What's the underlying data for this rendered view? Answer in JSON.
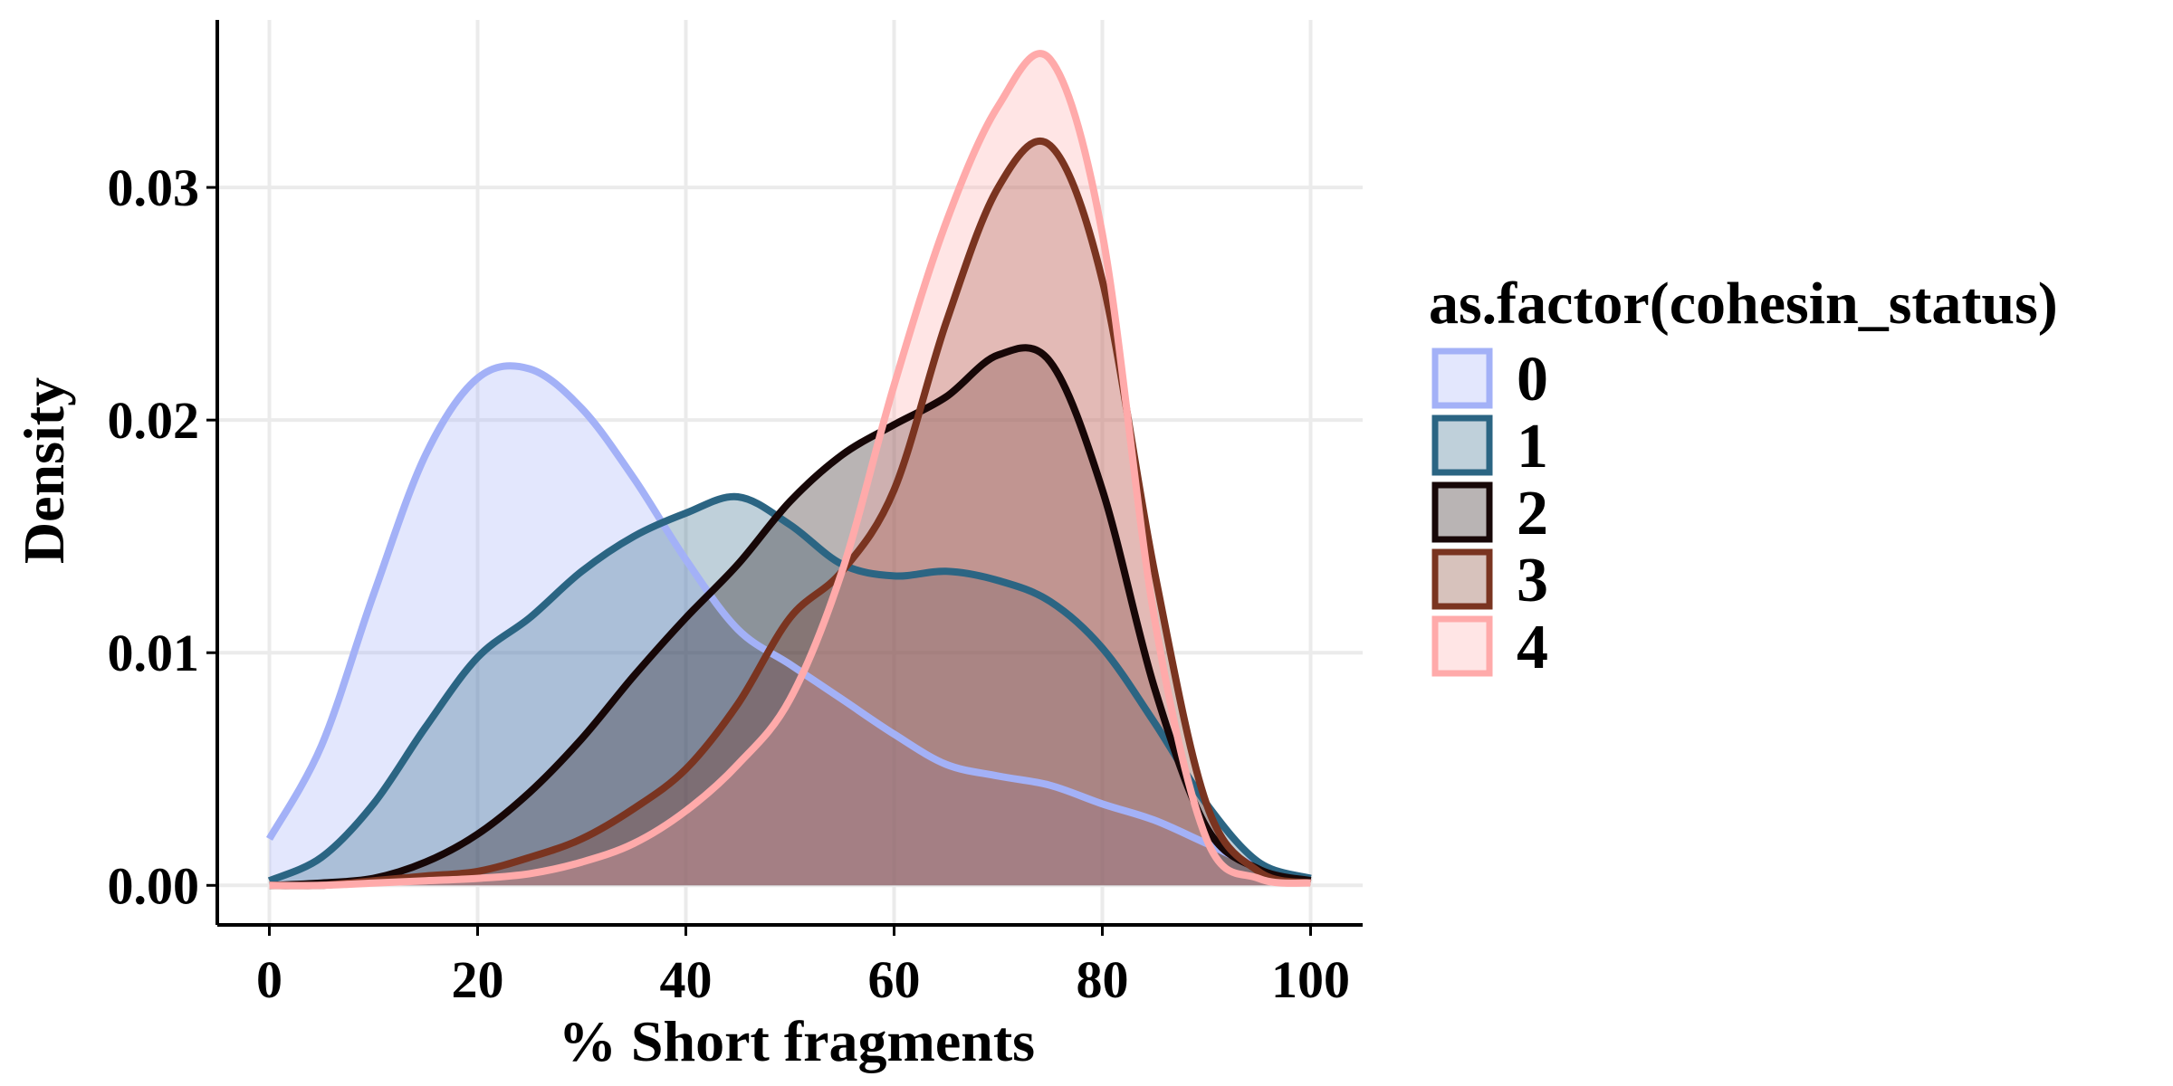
{
  "chart_data": {
    "type": "area",
    "subtype": "density",
    "title": "",
    "xlabel": "% Short fragments",
    "ylabel": "Density",
    "xlim": [
      -5,
      105
    ],
    "ylim": [
      -0.0017,
      0.0372
    ],
    "x_ticks": [
      {
        "value": 0,
        "label": "0"
      },
      {
        "value": 20,
        "label": "20"
      },
      {
        "value": 40,
        "label": "40"
      },
      {
        "value": 60,
        "label": "60"
      },
      {
        "value": 80,
        "label": "80"
      },
      {
        "value": 100,
        "label": "100"
      }
    ],
    "y_ticks": [
      {
        "value": 0.0,
        "label": "0.00"
      },
      {
        "value": 0.01,
        "label": "0.01"
      },
      {
        "value": 0.02,
        "label": "0.02"
      },
      {
        "value": 0.03,
        "label": "0.03"
      }
    ],
    "grid": true,
    "legend": {
      "title": "as.factor(cohesin_status)",
      "position": "right"
    },
    "fill_opacity": 0.3,
    "x": [
      0,
      5,
      10,
      15,
      20,
      25,
      30,
      35,
      40,
      45,
      50,
      55,
      60,
      65,
      70,
      75,
      80,
      85,
      90,
      95,
      100
    ],
    "series": [
      {
        "name": "0",
        "color": "#a3b1f7",
        "values": [
          0.002,
          0.006,
          0.0125,
          0.0185,
          0.0218,
          0.0222,
          0.0205,
          0.0175,
          0.014,
          0.011,
          0.0095,
          0.008,
          0.0065,
          0.0052,
          0.0047,
          0.0043,
          0.0035,
          0.0028,
          0.0018,
          0.0008,
          0.0003
        ]
      },
      {
        "name": "1",
        "color": "#2b6583",
        "values": [
          0.0002,
          0.0012,
          0.0035,
          0.0068,
          0.0098,
          0.0115,
          0.0135,
          0.015,
          0.016,
          0.0167,
          0.0155,
          0.0138,
          0.0133,
          0.0135,
          0.0131,
          0.0122,
          0.0102,
          0.007,
          0.0035,
          0.001,
          0.0003
        ]
      },
      {
        "name": "2",
        "color": "#170707",
        "values": [
          0.0,
          0.0001,
          0.0003,
          0.001,
          0.0022,
          0.004,
          0.0063,
          0.009,
          0.0115,
          0.0138,
          0.0165,
          0.0185,
          0.0198,
          0.021,
          0.0228,
          0.0225,
          0.017,
          0.0085,
          0.0025,
          0.0007,
          0.0002
        ]
      },
      {
        "name": "3",
        "color": "#7a3420",
        "values": [
          0.0,
          0.0,
          0.0002,
          0.0004,
          0.0006,
          0.0012,
          0.002,
          0.0033,
          0.005,
          0.0078,
          0.0115,
          0.0135,
          0.017,
          0.0242,
          0.03,
          0.0318,
          0.026,
          0.0135,
          0.0035,
          0.0006,
          0.0001
        ]
      },
      {
        "name": "4",
        "color": "#ffaaaa",
        "values": [
          0.0,
          0.0,
          0.0001,
          0.0002,
          0.0003,
          0.0005,
          0.001,
          0.0018,
          0.0032,
          0.0052,
          0.008,
          0.0135,
          0.0215,
          0.0285,
          0.0335,
          0.0355,
          0.028,
          0.0115,
          0.002,
          0.0003,
          0.0001
        ]
      }
    ]
  }
}
